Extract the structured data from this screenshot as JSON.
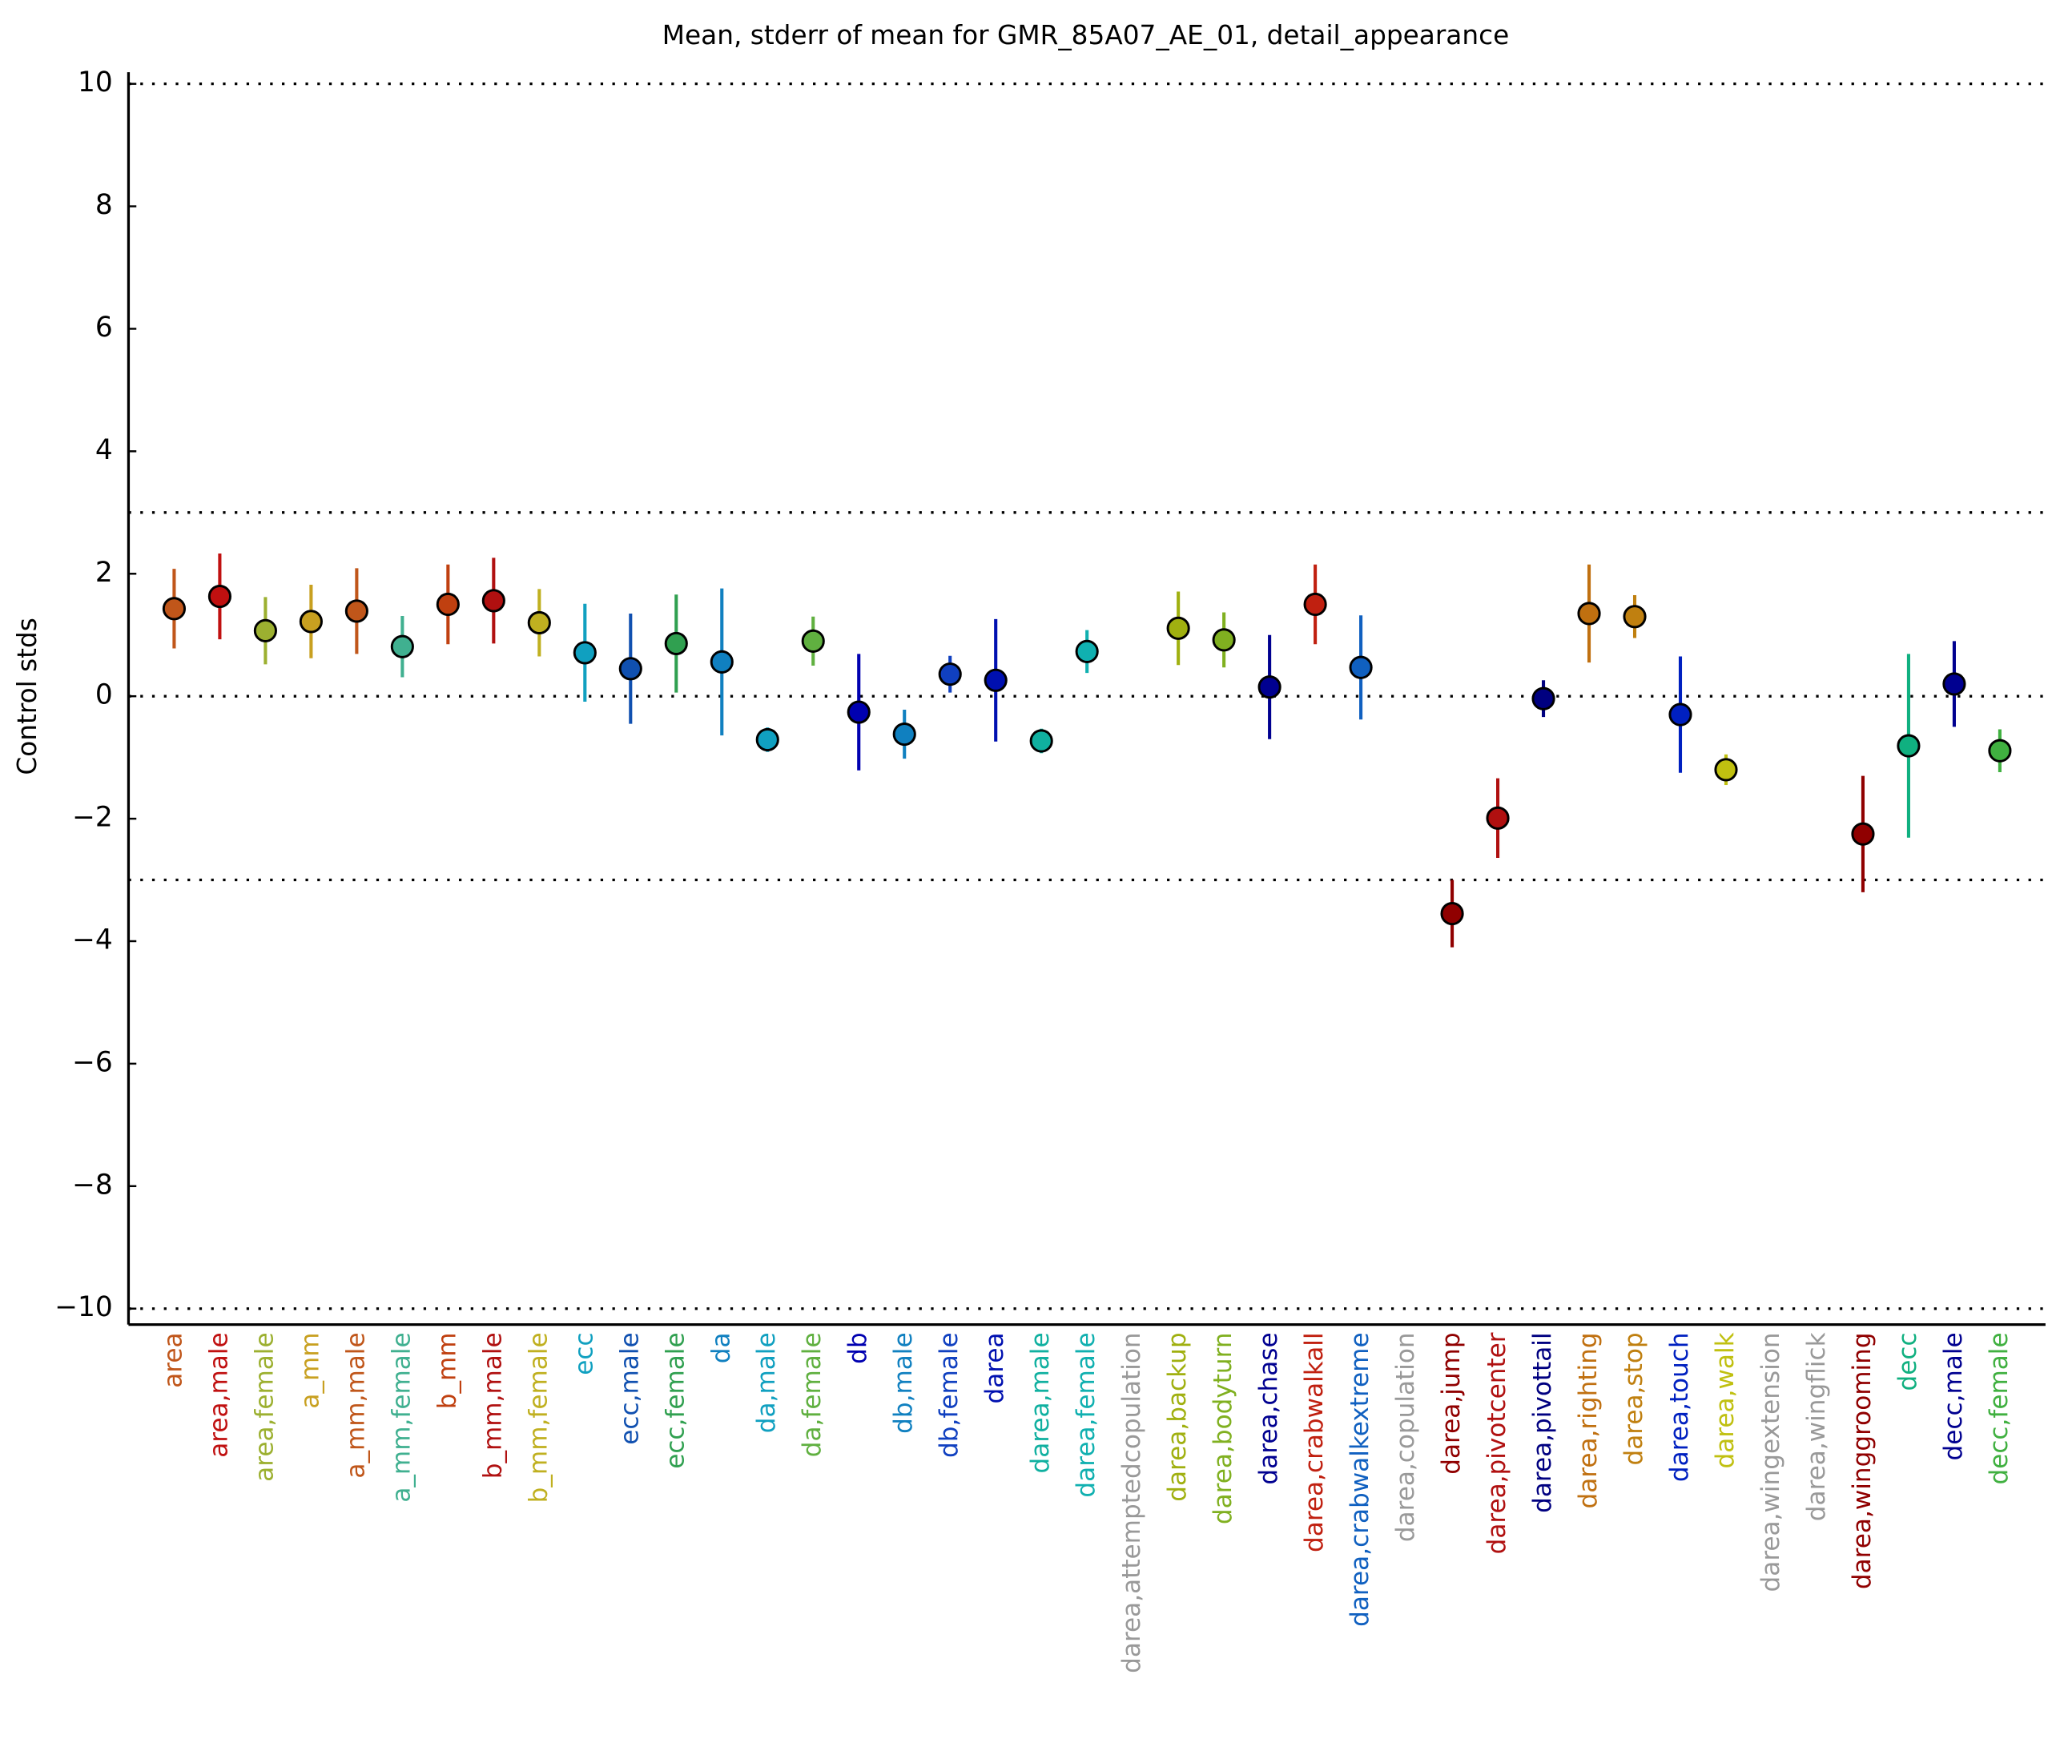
{
  "chart_data": {
    "type": "errorbar",
    "title": "Mean, stderr of mean for GMR_85A07_AE_01, detail_appearance",
    "ylabel": "Control stds",
    "categories": [
      "area",
      "area,male",
      "area,female",
      "a_mm",
      "a_mm,male",
      "a_mm,female",
      "b_mm",
      "b_mm,male",
      "b_mm,female",
      "ecc",
      "ecc,male",
      "ecc,female",
      "da",
      "da,male",
      "da,female",
      "db",
      "db,male",
      "db,female",
      "darea",
      "darea,male",
      "darea,female",
      "darea,attemptedcopulation",
      "darea,backup",
      "darea,bodyturn",
      "darea,chase",
      "darea,crabwalkall",
      "darea,crabwalkextreme",
      "darea,copulation",
      "darea,jump",
      "darea,pivotcenter",
      "darea,pivottail",
      "darea,righting",
      "darea,stop",
      "darea,touch",
      "darea,walk",
      "darea,wingextension",
      "darea,wingflick",
      "darea,winggrooming",
      "decc",
      "decc,male",
      "decc,female"
    ],
    "values": [
      1.43,
      1.63,
      1.07,
      1.22,
      1.39,
      0.81,
      1.5,
      1.56,
      1.2,
      0.71,
      0.45,
      0.86,
      0.56,
      -0.71,
      0.9,
      -0.26,
      -0.62,
      0.36,
      0.26,
      -0.73,
      0.73,
      null,
      1.11,
      0.92,
      0.15,
      1.5,
      0.47,
      null,
      -3.55,
      -1.99,
      -0.04,
      1.35,
      1.3,
      -0.3,
      -1.2,
      null,
      null,
      -2.25,
      -0.81,
      0.2,
      -0.89
    ],
    "errors": [
      0.65,
      0.7,
      0.55,
      0.6,
      0.7,
      0.5,
      0.65,
      0.7,
      0.55,
      0.8,
      0.9,
      0.8,
      1.2,
      0.2,
      0.4,
      0.95,
      0.4,
      0.3,
      1.0,
      0.2,
      0.35,
      null,
      0.6,
      0.45,
      0.85,
      0.65,
      0.85,
      null,
      0.55,
      0.65,
      0.3,
      0.8,
      0.35,
      0.95,
      0.25,
      null,
      null,
      0.95,
      1.5,
      0.7,
      0.35
    ],
    "colors": [
      "#c0561a",
      "#c01010",
      "#9cb030",
      "#c8a020",
      "#c0561a",
      "#40b090",
      "#c04010",
      "#b01010",
      "#c0b020",
      "#10a0c0",
      "#1050b0",
      "#30a050",
      "#1080c0",
      "#10a0c0",
      "#60b040",
      "#0000b0",
      "#1080c0",
      "#1040c0",
      "#0010b0",
      "#10b0a0",
      "#10b0b0",
      "#999999",
      "#a0b010",
      "#80b020",
      "#000090",
      "#c02010",
      "#1060c0",
      "#999999",
      "#900000",
      "#b01010",
      "#000080",
      "#c07010",
      "#c08010",
      "#0020c0",
      "#c0c010",
      "#999999",
      "#999999",
      "#900000",
      "#10b080",
      "#000090",
      "#40b040"
    ],
    "xlim": [
      0,
      42
    ],
    "ylim": [
      -10.26,
      10.19
    ],
    "yticks": [
      {
        "value": -10,
        "label": "−10"
      },
      {
        "value": -8,
        "label": "−8"
      },
      {
        "value": -6,
        "label": "−6"
      },
      {
        "value": -4,
        "label": "−4"
      },
      {
        "value": -2,
        "label": "−2"
      },
      0,
      2,
      4,
      6,
      8,
      10
    ],
    "hlines": [
      -10,
      -3,
      0,
      3,
      10
    ]
  }
}
